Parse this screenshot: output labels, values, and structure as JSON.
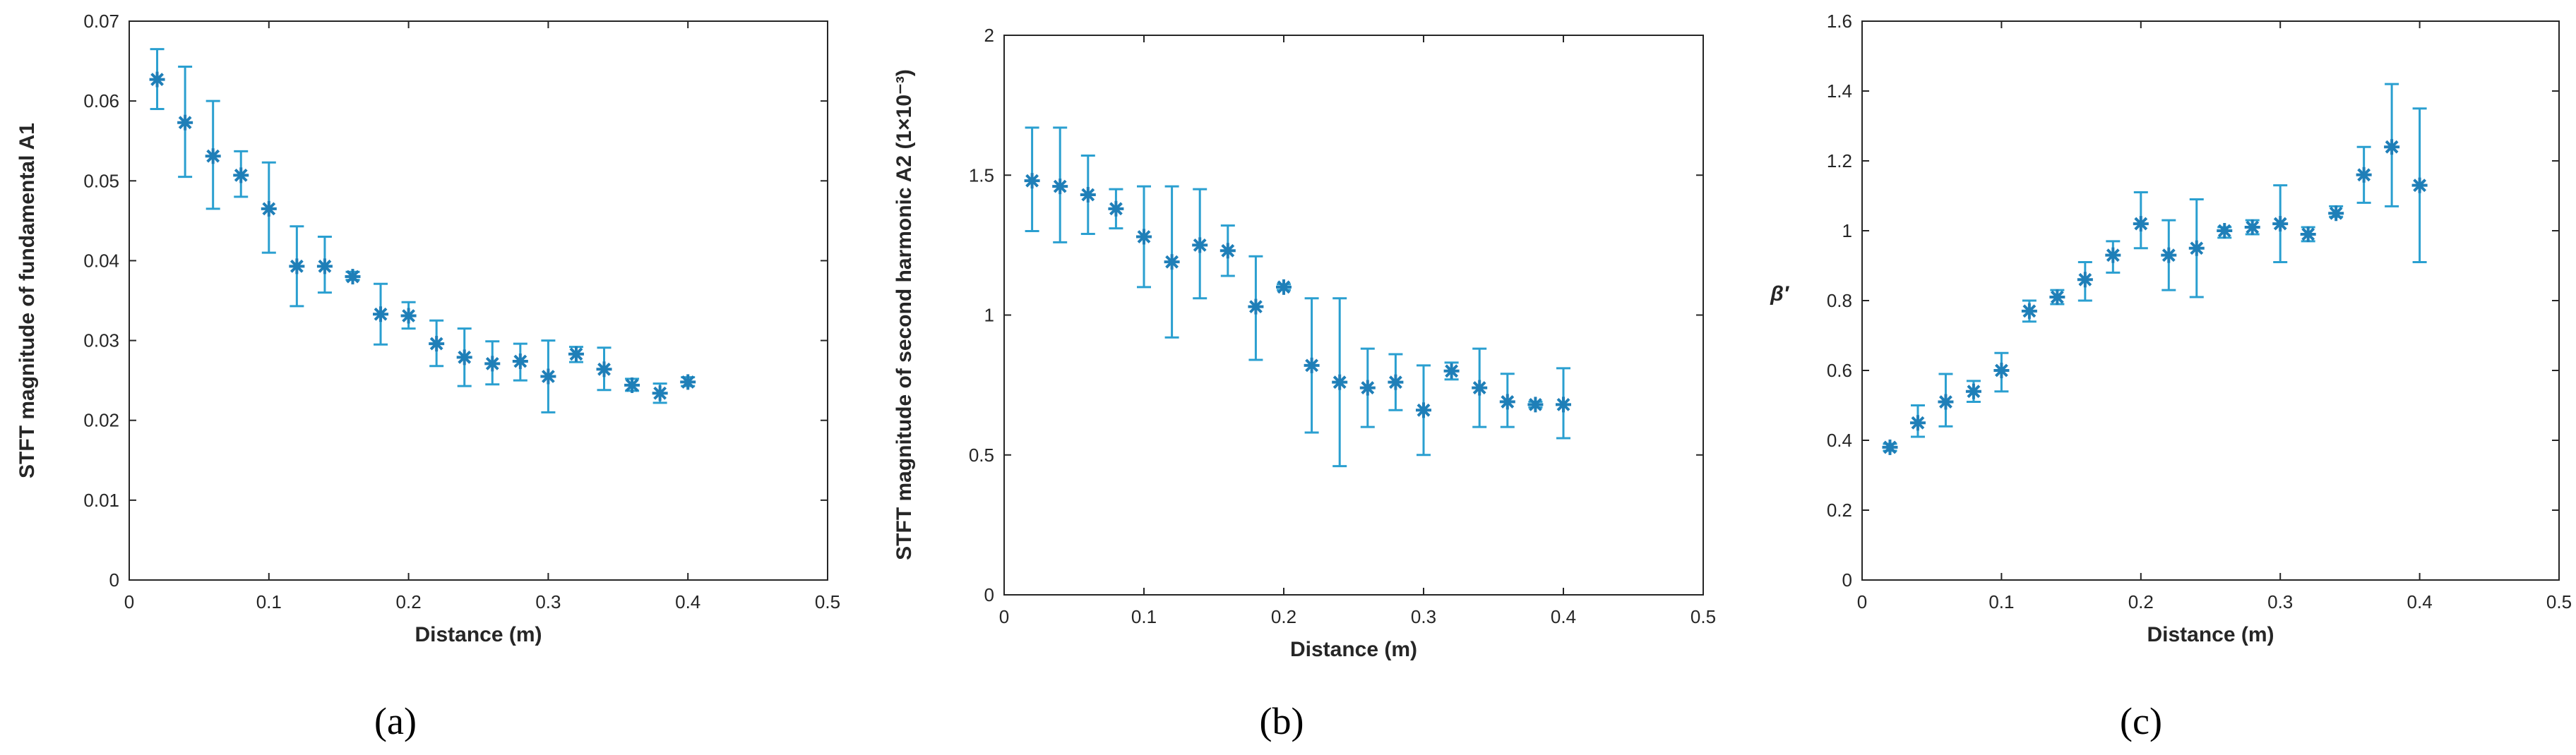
{
  "colors": {
    "series": "#1f7fb8",
    "errorbar": "#2a9fd0",
    "axis": "#262626"
  },
  "chart_data": [
    {
      "type": "scatter",
      "panel_letter": "a",
      "panel_label": "(a)",
      "title": "",
      "xlabel": "Distance (m)",
      "ylabel": "STFT magnitude of fundamental A1",
      "xlim": [
        0,
        0.5
      ],
      "ylim": [
        0,
        0.07
      ],
      "x_ticks": [
        "0",
        "0.1",
        "0.2",
        "0.3",
        "0.4",
        "0.5"
      ],
      "y_ticks": [
        "0",
        "0.01",
        "0.02",
        "0.03",
        "0.04",
        "0.05",
        "0.06",
        "0.07"
      ],
      "x": [
        0.02,
        0.04,
        0.06,
        0.08,
        0.1,
        0.12,
        0.14,
        0.16,
        0.18,
        0.2,
        0.22,
        0.24,
        0.26,
        0.28,
        0.3,
        0.32,
        0.34,
        0.36,
        0.38,
        0.4
      ],
      "y": [
        0.0627,
        0.0573,
        0.0531,
        0.0507,
        0.0465,
        0.0393,
        0.0393,
        0.038,
        0.0333,
        0.0331,
        0.0296,
        0.0279,
        0.0271,
        0.0274,
        0.0255,
        0.0283,
        0.0264,
        0.0244,
        0.0234,
        0.0248
      ],
      "y_low": [
        0.059,
        0.0505,
        0.0465,
        0.048,
        0.041,
        0.0343,
        0.036,
        0.0376,
        0.0295,
        0.0315,
        0.0268,
        0.0243,
        0.0245,
        0.025,
        0.021,
        0.0273,
        0.0238,
        0.0237,
        0.0222,
        0.0243
      ],
      "y_high": [
        0.0665,
        0.0643,
        0.06,
        0.0537,
        0.0523,
        0.0443,
        0.043,
        0.0386,
        0.0371,
        0.0348,
        0.0325,
        0.0315,
        0.0299,
        0.0296,
        0.03,
        0.0292,
        0.0291,
        0.0252,
        0.0246,
        0.0254
      ]
    },
    {
      "type": "scatter",
      "panel_letter": "b",
      "panel_label": "(b)",
      "title": "",
      "xlabel": "Distance (m)",
      "ylabel": "STFT magnitude of second harmonic A2 (1×10⁻³)",
      "xlim": [
        0,
        0.5
      ],
      "ylim": [
        0,
        2
      ],
      "x_ticks": [
        "0",
        "0.1",
        "0.2",
        "0.3",
        "0.4",
        "0.5"
      ],
      "y_ticks": [
        "0",
        "0.5",
        "1",
        "1.5",
        "2"
      ],
      "x": [
        0.02,
        0.04,
        0.06,
        0.08,
        0.1,
        0.12,
        0.14,
        0.16,
        0.18,
        0.2,
        0.22,
        0.24,
        0.26,
        0.28,
        0.3,
        0.32,
        0.34,
        0.36,
        0.38,
        0.4
      ],
      "y": [
        1.48,
        1.46,
        1.43,
        1.38,
        1.28,
        1.19,
        1.25,
        1.23,
        1.03,
        1.1,
        0.82,
        0.76,
        0.74,
        0.76,
        0.66,
        0.8,
        0.74,
        0.69,
        0.68,
        0.68
      ],
      "y_low": [
        1.3,
        1.26,
        1.29,
        1.31,
        1.1,
        0.92,
        1.06,
        1.14,
        0.84,
        1.09,
        0.58,
        0.46,
        0.6,
        0.66,
        0.5,
        0.77,
        0.6,
        0.6,
        0.67,
        0.56
      ],
      "y_high": [
        1.67,
        1.67,
        1.57,
        1.45,
        1.46,
        1.46,
        1.45,
        1.32,
        1.21,
        1.11,
        1.06,
        1.06,
        0.88,
        0.86,
        0.82,
        0.83,
        0.88,
        0.79,
        0.69,
        0.81
      ]
    },
    {
      "type": "scatter",
      "panel_letter": "c",
      "panel_label": "(c)",
      "title": "",
      "xlabel": "Distance (m)",
      "ylabel": "β′",
      "xlim": [
        0,
        0.5
      ],
      "ylim": [
        0,
        1.6
      ],
      "x_ticks": [
        "0",
        "0.1",
        "0.2",
        "0.3",
        "0.4",
        "0.5"
      ],
      "y_ticks": [
        "0",
        "0.2",
        "0.4",
        "0.6",
        "0.8",
        "1",
        "1.2",
        "1.4",
        "1.6"
      ],
      "x": [
        0.02,
        0.04,
        0.06,
        0.08,
        0.1,
        0.12,
        0.14,
        0.16,
        0.18,
        0.2,
        0.22,
        0.24,
        0.26,
        0.28,
        0.3,
        0.32,
        0.34,
        0.36,
        0.38,
        0.4
      ],
      "y": [
        0.38,
        0.45,
        0.51,
        0.54,
        0.6,
        0.77,
        0.81,
        0.86,
        0.93,
        1.02,
        0.93,
        0.95,
        1.0,
        1.01,
        1.02,
        0.99,
        1.05,
        1.16,
        1.24,
        1.13
      ],
      "y_low": [
        0.37,
        0.41,
        0.44,
        0.51,
        0.54,
        0.74,
        0.79,
        0.8,
        0.88,
        0.95,
        0.83,
        0.81,
        0.98,
        0.99,
        0.91,
        0.97,
        1.04,
        1.08,
        1.07,
        0.91
      ],
      "y_high": [
        0.39,
        0.5,
        0.59,
        0.57,
        0.65,
        0.8,
        0.83,
        0.91,
        0.97,
        1.11,
        1.03,
        1.09,
        1.01,
        1.03,
        1.13,
        1.01,
        1.07,
        1.24,
        1.42,
        1.35
      ]
    }
  ]
}
